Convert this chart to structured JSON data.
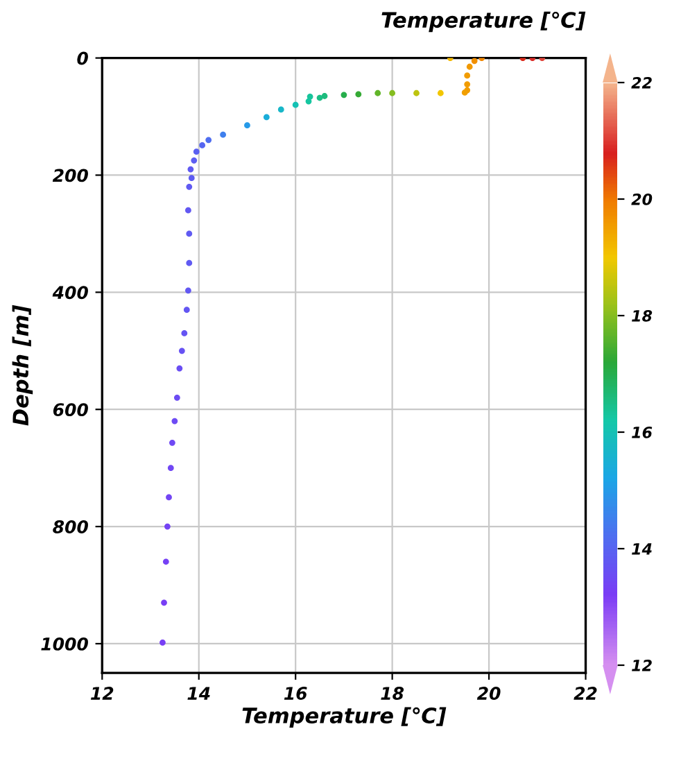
{
  "chart_data": {
    "type": "scatter",
    "xlabel": "Temperature [℃]",
    "ylabel": "Depth [m]",
    "clabel": "Temperature [℃]",
    "x": [
      21.1,
      20.9,
      20.7,
      19.2,
      19.85,
      19.7,
      19.6,
      19.55,
      19.55,
      19.55,
      19.5,
      19.0,
      18.5,
      18.0,
      17.7,
      17.3,
      17.0,
      16.6,
      16.3,
      16.5,
      16.27,
      16.0,
      15.7,
      15.4,
      15.0,
      14.5,
      14.2,
      14.07,
      13.95,
      13.9,
      13.83,
      13.85,
      13.8,
      13.78,
      13.8,
      13.8,
      13.78,
      13.75,
      13.7,
      13.65,
      13.6,
      13.55,
      13.5,
      13.45,
      13.42,
      13.38,
      13.35,
      13.32,
      13.28,
      13.25
    ],
    "values": [
      0,
      0,
      0,
      0,
      0,
      5,
      15,
      30,
      45,
      55,
      59,
      60,
      60,
      60,
      60,
      62,
      63,
      65,
      66,
      68,
      74,
      80,
      88,
      101,
      115,
      131,
      140,
      149,
      160,
      175,
      190,
      205,
      220,
      260,
      300,
      350,
      397,
      430,
      470,
      500,
      530,
      580,
      620,
      657,
      700,
      750,
      800,
      860,
      930,
      998
    ],
    "cvalues": [
      21.1,
      20.9,
      20.7,
      19.2,
      19.85,
      19.7,
      19.6,
      19.55,
      19.55,
      19.55,
      19.5,
      19.0,
      18.5,
      18.0,
      17.7,
      17.3,
      17.0,
      16.6,
      16.3,
      16.5,
      16.27,
      16.0,
      15.7,
      15.4,
      15.0,
      14.5,
      14.2,
      14.07,
      13.95,
      13.9,
      13.83,
      13.85,
      13.8,
      13.78,
      13.8,
      13.8,
      13.78,
      13.75,
      13.7,
      13.65,
      13.6,
      13.55,
      13.5,
      13.45,
      13.42,
      13.38,
      13.35,
      13.32,
      13.28,
      13.25
    ],
    "xlim": [
      12,
      22
    ],
    "xticks": [
      12,
      14,
      16,
      18,
      20,
      22
    ],
    "ylim": [
      1050,
      0
    ],
    "yticks": [
      0,
      200,
      400,
      600,
      800,
      1000
    ],
    "clim": [
      12,
      22
    ],
    "cticks": [
      12,
      14,
      16,
      18,
      20,
      22
    ],
    "grid": true,
    "marker": "circle"
  }
}
